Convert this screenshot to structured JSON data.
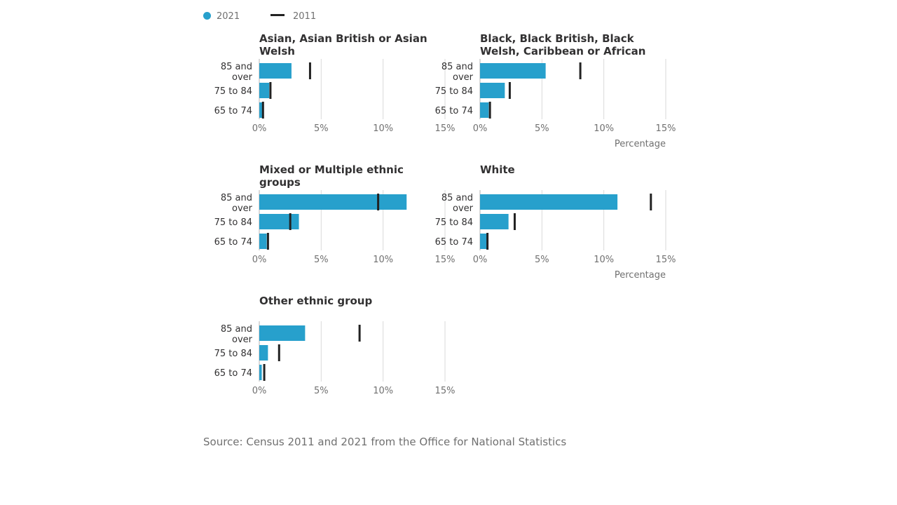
{
  "legend": {
    "series_2021": "2021",
    "series_2011": "2011"
  },
  "source": "Source: Census 2011 and 2021 from the Office for National Statistics",
  "colors": {
    "bar_2021": "#27a0cc",
    "marker_2011": "#222222",
    "grid": "#d9d9d9"
  },
  "chart_data": [
    {
      "type": "bar",
      "orientation": "horizontal",
      "title": "Asian, Asian British or Asian Welsh",
      "categories": [
        [
          "85 and",
          "over"
        ],
        [
          "75 to 84"
        ],
        [
          "65 to 74"
        ]
      ],
      "series": [
        {
          "name": "2021",
          "values": [
            2.6,
            0.8,
            0.3
          ]
        },
        {
          "name": "2011",
          "values": [
            4.1,
            0.9,
            0.3
          ]
        }
      ],
      "xticks": [
        "0%",
        "5%",
        "10%",
        "15%"
      ],
      "xlim": [
        0,
        15
      ],
      "xlabel": ""
    },
    {
      "type": "bar",
      "orientation": "horizontal",
      "title": "Black, Black British, Black Welsh, Caribbean or African",
      "categories": [
        [
          "85 and",
          "over"
        ],
        [
          "75 to 84"
        ],
        [
          "65 to 74"
        ]
      ],
      "series": [
        {
          "name": "2021",
          "values": [
            5.3,
            2.0,
            0.7
          ]
        },
        {
          "name": "2011",
          "values": [
            8.1,
            2.4,
            0.8
          ]
        }
      ],
      "xticks": [
        "0%",
        "5%",
        "10%",
        "15%"
      ],
      "xlim": [
        0,
        15
      ],
      "xlabel": "Percentage"
    },
    {
      "type": "bar",
      "orientation": "horizontal",
      "title": "Mixed or Multiple ethnic groups",
      "categories": [
        [
          "85 and",
          "over"
        ],
        [
          "75 to 84"
        ],
        [
          "65 to 74"
        ]
      ],
      "series": [
        {
          "name": "2021",
          "values": [
            11.9,
            3.2,
            0.6
          ]
        },
        {
          "name": "2011",
          "values": [
            9.6,
            2.5,
            0.7
          ]
        }
      ],
      "xticks": [
        "0%",
        "5%",
        "10%",
        "15%"
      ],
      "xlim": [
        0,
        15
      ],
      "xlabel": ""
    },
    {
      "type": "bar",
      "orientation": "horizontal",
      "title": "White",
      "categories": [
        [
          "85 and",
          "over"
        ],
        [
          "75 to 84"
        ],
        [
          "65 to 74"
        ]
      ],
      "series": [
        {
          "name": "2021",
          "values": [
            11.1,
            2.3,
            0.6
          ]
        },
        {
          "name": "2011",
          "values": [
            13.8,
            2.8,
            0.6
          ]
        }
      ],
      "xticks": [
        "0%",
        "5%",
        "10%",
        "15%"
      ],
      "xlim": [
        0,
        15
      ],
      "xlabel": "Percentage"
    },
    {
      "type": "bar",
      "orientation": "horizontal",
      "title": "Other ethnic group",
      "categories": [
        [
          "85 and",
          "over"
        ],
        [
          "75 to 84"
        ],
        [
          "65 to 74"
        ]
      ],
      "series": [
        {
          "name": "2021",
          "values": [
            3.7,
            0.7,
            0.2
          ]
        },
        {
          "name": "2011",
          "values": [
            8.1,
            1.6,
            0.4
          ]
        }
      ],
      "xticks": [
        "0%",
        "5%",
        "10%",
        "15%"
      ],
      "xlim": [
        0,
        15
      ],
      "xlabel": ""
    }
  ]
}
